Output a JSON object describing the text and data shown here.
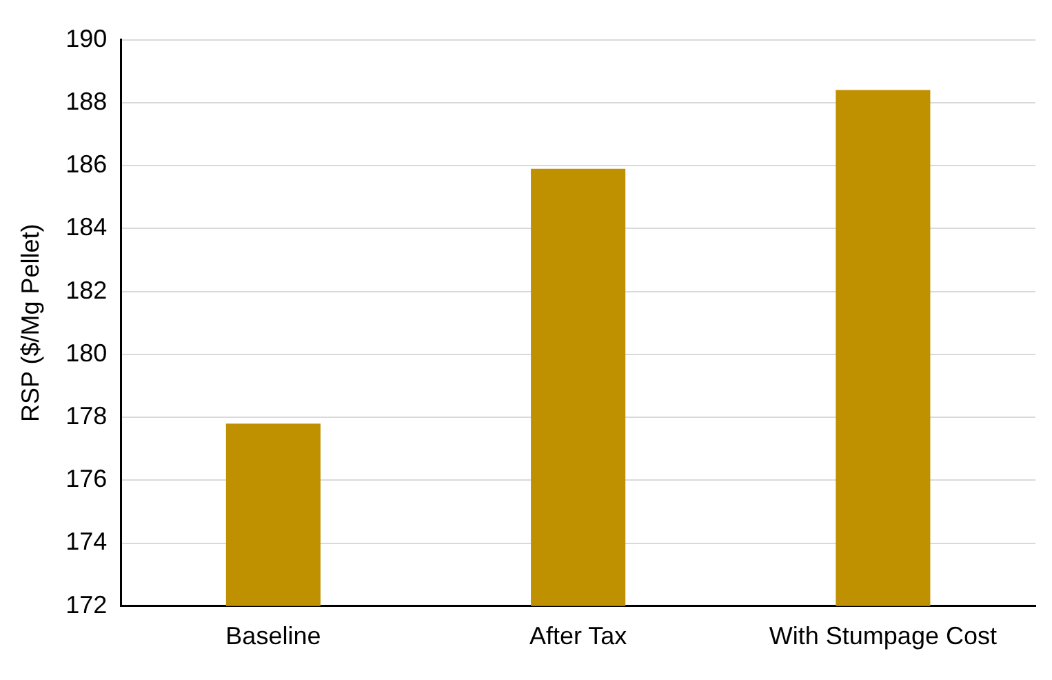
{
  "chart_data": {
    "type": "bar",
    "ylabel": "RSP ($/Mg Pellet)",
    "categories": [
      "Baseline",
      "After Tax",
      "With Stumpage Cost"
    ],
    "values": [
      177.8,
      185.9,
      188.4
    ],
    "color": "#bf9000",
    "ylim": [
      172,
      190
    ],
    "yticks": [
      172,
      174,
      176,
      178,
      180,
      182,
      184,
      186,
      188,
      190
    ],
    "grid": "y",
    "legend": false
  }
}
